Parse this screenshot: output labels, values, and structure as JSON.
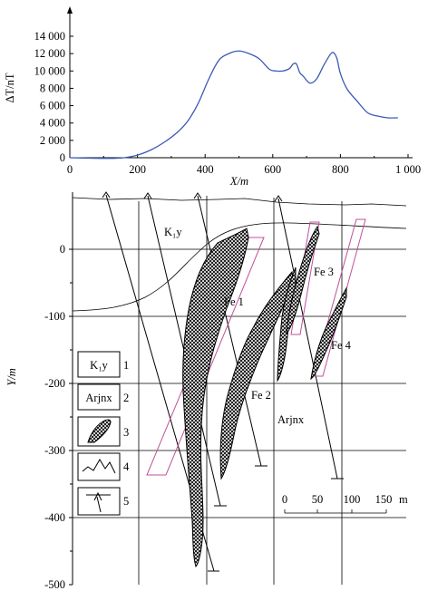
{
  "colors": {
    "curve": "#3b5bb5",
    "outline": "#c0509a",
    "ink": "#000000"
  },
  "chart_data": [
    {
      "type": "line",
      "ylabel": "ΔT/nT",
      "xlabel": "X/m",
      "xlim": [
        0,
        1000
      ],
      "ylim": [
        0,
        14000
      ],
      "x_ticks": [
        "0",
        "200",
        "400",
        "600",
        "800",
        "1 000"
      ],
      "y_ticks": [
        "0",
        "2 000",
        "4 000",
        "6 000",
        "8 000",
        "10 000",
        "12 000",
        "14 000"
      ],
      "series": [
        {
          "x": [
            0,
            60,
            120,
            160,
            200,
            240,
            280,
            320,
            350,
            380,
            410,
            440,
            470,
            500,
            530,
            560,
            590,
            610,
            630,
            650,
            660,
            670,
            680,
            690,
            710,
            730,
            750,
            770,
            780,
            790,
            800,
            820,
            850,
            880,
            910,
            940,
            970
          ],
          "y": [
            0,
            -50,
            -80,
            0,
            300,
            900,
            1800,
            3000,
            4300,
            6300,
            9000,
            11200,
            12000,
            12300,
            12000,
            11400,
            10200,
            10000,
            10000,
            10300,
            10800,
            10800,
            9800,
            9400,
            8600,
            9100,
            10600,
            11900,
            12100,
            11400,
            9700,
            7900,
            6500,
            5200,
            4800,
            4600,
            4600
          ]
        }
      ]
    },
    {
      "type": "diagram",
      "ylabel": "Y/m",
      "ylim": [
        -500,
        50
      ],
      "y_ticks": [
        "0",
        "-100",
        "-200",
        "-300",
        "-400",
        "-500"
      ],
      "labels": {
        "kly": "K₁y",
        "fe1": "Fe 1",
        "fe2": "Fe 2",
        "fe3": "Fe 3",
        "fe4": "Fe 4",
        "arjnx": "Arjnx"
      },
      "scale_bar": {
        "ticks": [
          "0",
          "50",
          "100",
          "150"
        ],
        "unit": "m"
      },
      "legend": [
        {
          "symbol": "K₁y",
          "num": "1"
        },
        {
          "symbol": "Arjnx",
          "num": "2"
        },
        {
          "symbol": "hatch",
          "num": "3"
        },
        {
          "symbol": "mountain",
          "num": "4"
        },
        {
          "symbol": "drill",
          "num": "5"
        }
      ]
    }
  ]
}
